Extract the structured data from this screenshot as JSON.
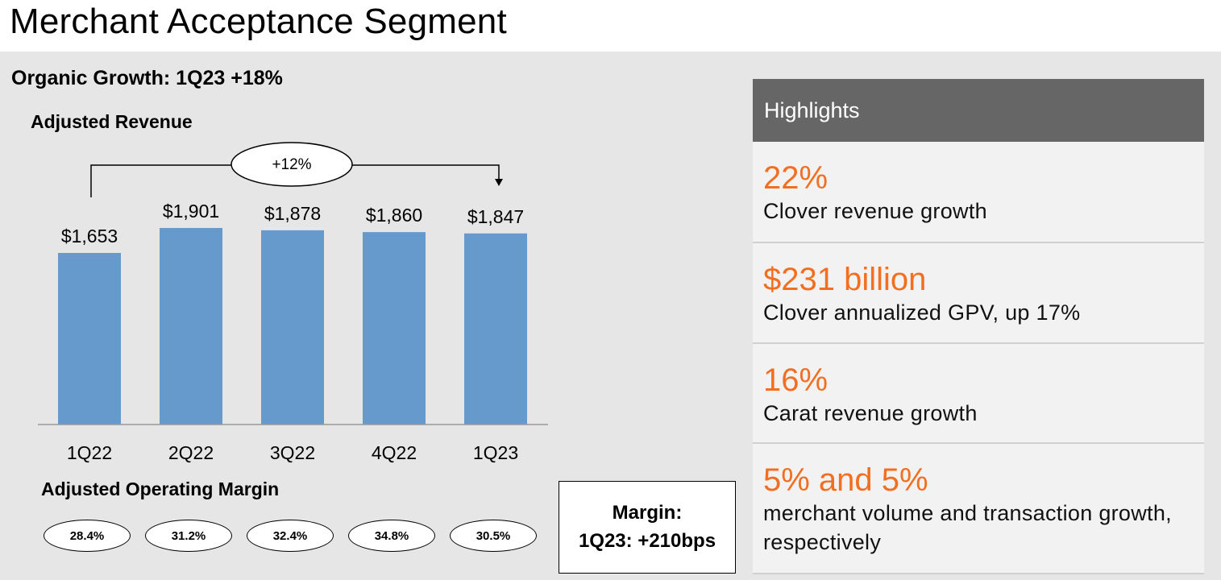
{
  "title": "Merchant Acceptance Segment",
  "organic_growth": "Organic Growth: 1Q23 +18%",
  "revenue_title": "Adjusted Revenue",
  "growth_callout": "+12%",
  "margin_title": "Adjusted Operating Margin",
  "margins": [
    "28.4%",
    "31.2%",
    "32.4%",
    "34.8%",
    "30.5%"
  ],
  "margin_box": {
    "line1": "Margin:",
    "line2": "1Q23: +210bps"
  },
  "highlights": {
    "header": "Highlights",
    "items": [
      {
        "big": "22%",
        "small": "Clover revenue growth"
      },
      {
        "big": "$231 billion",
        "small": "Clover annualized GPV, up 17%"
      },
      {
        "big": "16%",
        "small": "Carat revenue growth"
      },
      {
        "big": "5% and 5%",
        "small": "merchant volume and transaction growth, respectively"
      }
    ]
  },
  "colors": {
    "bar": "#6699cc",
    "accent": "#f26f21",
    "panel": "#e6e6e6",
    "header": "#666666"
  },
  "chart_data": {
    "type": "bar",
    "title": "Adjusted Revenue",
    "categories": [
      "1Q22",
      "2Q22",
      "3Q22",
      "4Q22",
      "1Q23"
    ],
    "values": [
      1653,
      1901,
      1878,
      1860,
      1847
    ],
    "value_labels": [
      "$1,653",
      "$1,901",
      "$1,878",
      "$1,860",
      "$1,847"
    ],
    "ylim": [
      0,
      2000
    ],
    "grid": false,
    "annotations": [
      {
        "text": "+12%",
        "from": "1Q22",
        "to": "1Q23"
      }
    ]
  }
}
